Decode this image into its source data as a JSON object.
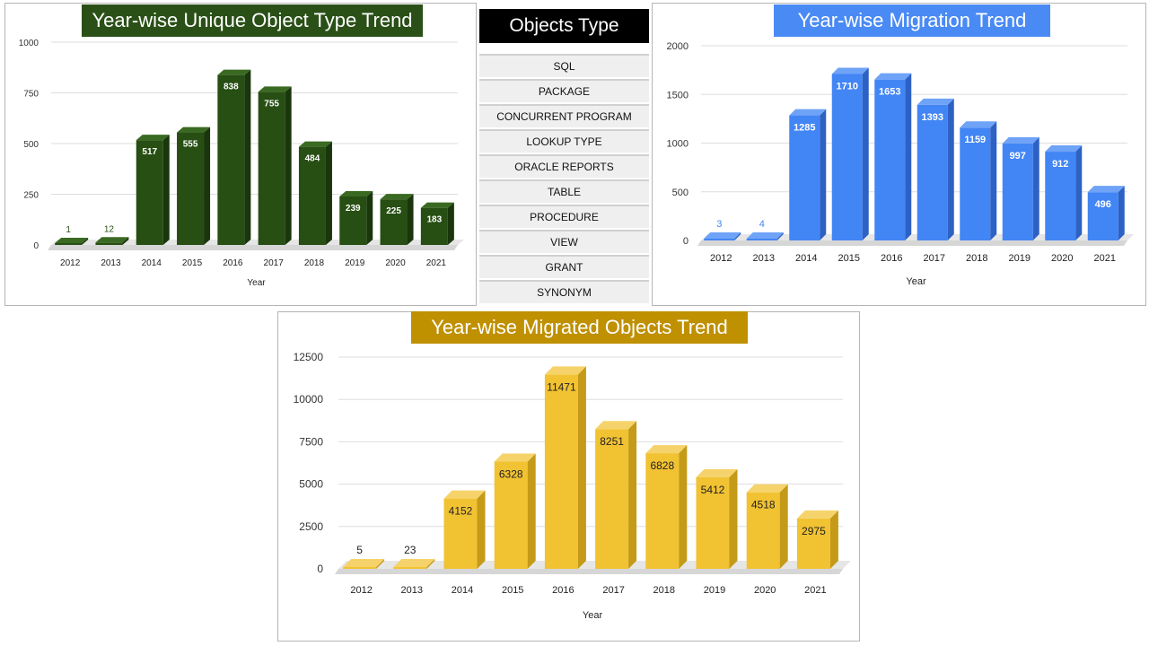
{
  "chart_data": [
    {
      "type": "bar",
      "title": "Year-wise Unique Object Type Trend",
      "xlabel": "Year",
      "ylabel": "",
      "categories": [
        "2012",
        "2013",
        "2014",
        "2015",
        "2016",
        "2017",
        "2018",
        "2019",
        "2020",
        "2021"
      ],
      "values": [
        1,
        12,
        517,
        555,
        838,
        755,
        484,
        239,
        225,
        183
      ],
      "ylim": [
        0,
        1000
      ],
      "yticks": [
        0,
        250,
        500,
        750,
        1000
      ],
      "grid": true,
      "colors": {
        "title_bg": "#2a5017",
        "bar_front": "#274e13",
        "bar_side": "#1a360c",
        "bar_top": "#3a6a22",
        "label": "#ffffff",
        "small_label": "#274e13"
      }
    },
    {
      "type": "bar",
      "title": "Year-wise Migration Trend",
      "xlabel": "Year",
      "ylabel": "",
      "categories": [
        "2012",
        "2013",
        "2014",
        "2015",
        "2016",
        "2017",
        "2018",
        "2019",
        "2020",
        "2021"
      ],
      "values": [
        3,
        4,
        1285,
        1710,
        1653,
        1393,
        1159,
        997,
        912,
        496
      ],
      "ylim": [
        0,
        2000
      ],
      "yticks": [
        0,
        500,
        1000,
        1500,
        2000
      ],
      "grid": true,
      "colors": {
        "title_bg": "#4a8af4",
        "bar_front": "#4285f4",
        "bar_side": "#2d62c4",
        "bar_top": "#6ea3f7",
        "label": "#ffffff",
        "small_label": "#4285f4"
      }
    },
    {
      "type": "bar",
      "title": "Year-wise Migrated Objects Trend",
      "xlabel": "Year",
      "ylabel": "",
      "categories": [
        "2012",
        "2013",
        "2014",
        "2015",
        "2016",
        "2017",
        "2018",
        "2019",
        "2020",
        "2021"
      ],
      "values": [
        5,
        23,
        4152,
        6328,
        11471,
        8251,
        6828,
        5412,
        4518,
        2975
      ],
      "ylim": [
        0,
        12500
      ],
      "yticks": [
        0,
        2500,
        5000,
        7500,
        10000,
        12500
      ],
      "grid": true,
      "colors": {
        "title_bg": "#bf9000",
        "bar_front": "#f1c232",
        "bar_side": "#c49a18",
        "bar_top": "#f6d36a",
        "label": "#222222",
        "small_label": "#222222"
      }
    }
  ],
  "objects_type": {
    "header": "Objects Type",
    "items": [
      "SQL",
      "PACKAGE",
      "CONCURRENT PROGRAM",
      "LOOKUP TYPE",
      "ORACLE REPORTS",
      "TABLE",
      "PROCEDURE",
      "VIEW",
      "GRANT",
      "SYNONYM"
    ]
  }
}
